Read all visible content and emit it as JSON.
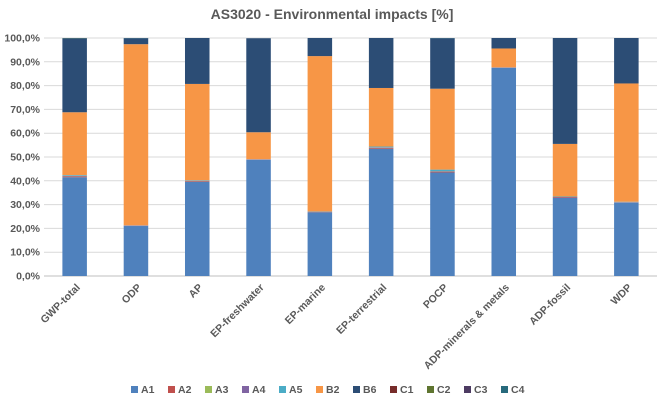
{
  "chart_data": {
    "type": "bar",
    "stacked": true,
    "title": "AS3020 - Environmental impacts [%]",
    "xlabel": "",
    "ylabel": "",
    "ylim": [
      0,
      100
    ],
    "yticks": [
      "0,0%",
      "10,0%",
      "20,0%",
      "30,0%",
      "40,0%",
      "50,0%",
      "60,0%",
      "70,0%",
      "80,0%",
      "90,0%",
      "100,0%"
    ],
    "grid": true,
    "legend_position": "bottom",
    "categories": [
      "GWP-total",
      "ODP",
      "AP",
      "EP-freshwater",
      "EP-marine",
      "EP-terrestrial",
      "POCP",
      "ADP-minerals & metals",
      "ADP-fossil",
      "WDP"
    ],
    "series": [
      {
        "name": "A1",
        "color": "#4f81bd",
        "values": [
          41.5,
          21.0,
          39.5,
          48.8,
          26.8,
          53.5,
          43.5,
          87.5,
          32.8,
          30.8
        ]
      },
      {
        "name": "A2",
        "color": "#c0504d",
        "values": [
          0.3,
          0.1,
          0.2,
          0.1,
          0.1,
          0.3,
          0.3,
          0.1,
          0.2,
          0.1
        ]
      },
      {
        "name": "A3",
        "color": "#9bbb59",
        "values": [
          0.1,
          0.0,
          0.1,
          0.0,
          0.0,
          0.1,
          0.1,
          0.0,
          0.0,
          0.0
        ]
      },
      {
        "name": "A4",
        "color": "#8064a2",
        "values": [
          0.2,
          0.1,
          0.2,
          0.1,
          0.1,
          0.2,
          0.2,
          0.0,
          0.2,
          0.1
        ]
      },
      {
        "name": "A5",
        "color": "#4bacc6",
        "values": [
          0.3,
          0.1,
          0.2,
          0.1,
          0.1,
          0.3,
          0.6,
          0.1,
          0.2,
          0.2
        ]
      },
      {
        "name": "B2",
        "color": "#f79646",
        "values": [
          26.4,
          76.1,
          40.5,
          11.3,
          65.3,
          24.6,
          34.0,
          7.9,
          22.1,
          49.7
        ]
      },
      {
        "name": "B6",
        "color": "#2c4d75",
        "values": [
          31.0,
          2.5,
          19.3,
          39.5,
          7.6,
          21.0,
          21.2,
          4.4,
          44.5,
          19.1
        ]
      },
      {
        "name": "C1",
        "color": "#772c2a",
        "values": [
          0.0,
          0.0,
          0.0,
          0.0,
          0.0,
          0.0,
          0.0,
          0.0,
          0.0,
          0.0
        ]
      },
      {
        "name": "C2",
        "color": "#5f7530",
        "values": [
          0.1,
          0.0,
          0.0,
          0.0,
          0.0,
          0.0,
          0.0,
          0.0,
          0.0,
          0.0
        ]
      },
      {
        "name": "C3",
        "color": "#4d3b62",
        "values": [
          0.0,
          0.0,
          0.0,
          0.0,
          0.0,
          0.0,
          0.0,
          0.0,
          0.0,
          0.0
        ]
      },
      {
        "name": "C4",
        "color": "#276a7c",
        "values": [
          0.1,
          0.1,
          0.0,
          0.0,
          0.0,
          0.0,
          0.1,
          0.0,
          0.0,
          0.0
        ]
      }
    ]
  }
}
